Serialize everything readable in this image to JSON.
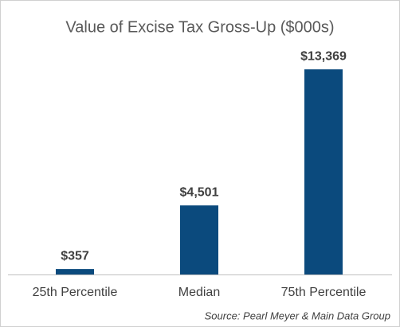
{
  "chart_data": {
    "type": "bar",
    "title": "Value of Excise Tax Gross-Up ($000s)",
    "categories": [
      "25th Percentile",
      "Median",
      "75th Percentile"
    ],
    "values": [
      357,
      4501,
      13369
    ],
    "value_labels": [
      "$357",
      "$4,501",
      "$13,369"
    ],
    "color": "#0b4a7d",
    "ylim": [
      0,
      14000
    ],
    "annotation": "Source: Pearl Meyer & Main Data Group"
  }
}
